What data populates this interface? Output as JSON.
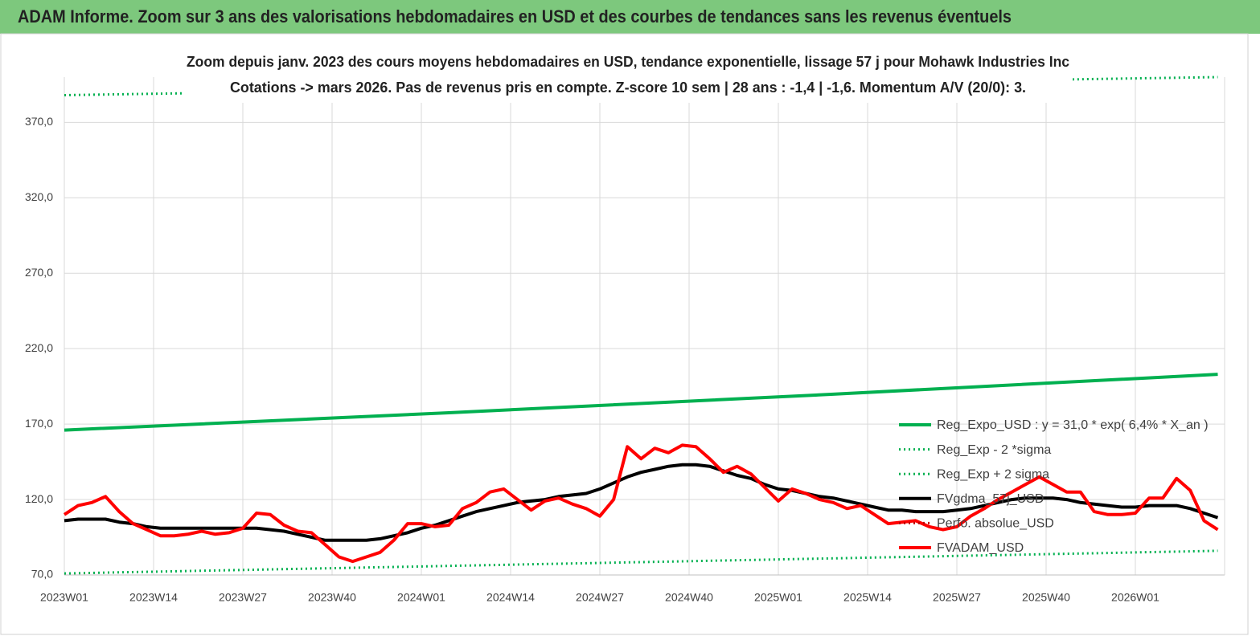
{
  "header": {
    "title": "ADAM Informe. Zoom sur 3 ans des valorisations hebdomadaires en USD et des courbes de tendances sans les revenus éventuels"
  },
  "chart_data": {
    "type": "line",
    "subtitle": [
      "Zoom depuis janv. 2023 des cours moyens hebdomadaires en USD, tendance exponentielle, lissage 57 j pour Mohawk Industries Inc",
      "Cotations -> mars 2026. Pas de revenus pris en compte. Z-score 10 sem  | 28 ans : -1,4 | -1,6. Momentum A/V (20/0): 3."
    ],
    "x": [
      0,
      2,
      4,
      6,
      8,
      10,
      12,
      14,
      16,
      18,
      20,
      22,
      24,
      26,
      28,
      30,
      32,
      34,
      36,
      38,
      40,
      42,
      44,
      46,
      48,
      50,
      52,
      54,
      56,
      58,
      60,
      62,
      64,
      66,
      68,
      70,
      72,
      74,
      76,
      78,
      80,
      82,
      84,
      86,
      88,
      90,
      92,
      94,
      96,
      98,
      100,
      102,
      104,
      106,
      108,
      110,
      112,
      114,
      116,
      118,
      120,
      122,
      124,
      126,
      128,
      130,
      132,
      134,
      136,
      138,
      140,
      142,
      144,
      146,
      148,
      150,
      152,
      154,
      156,
      158,
      160,
      162,
      164,
      166,
      168
    ],
    "xlim": [
      0,
      169
    ],
    "xticks": [
      {
        "value": 0,
        "label": "2023W01"
      },
      {
        "value": 13,
        "label": "2023W14"
      },
      {
        "value": 26,
        "label": "2023W27"
      },
      {
        "value": 39,
        "label": "2023W40"
      },
      {
        "value": 52,
        "label": "2024W01"
      },
      {
        "value": 65,
        "label": "2024W14"
      },
      {
        "value": 78,
        "label": "2024W27"
      },
      {
        "value": 91,
        "label": "2024W40"
      },
      {
        "value": 104,
        "label": "2025W01"
      },
      {
        "value": 117,
        "label": "2025W14"
      },
      {
        "value": 130,
        "label": "2025W27"
      },
      {
        "value": 143,
        "label": "2025W40"
      },
      {
        "value": 156,
        "label": "2026W01"
      }
    ],
    "ylim": [
      70,
      400
    ],
    "yticks": [
      {
        "value": 70,
        "label": "70,0"
      },
      {
        "value": 120,
        "label": "120,0"
      },
      {
        "value": 170,
        "label": "170,0"
      },
      {
        "value": 220,
        "label": "220,0"
      },
      {
        "value": 270,
        "label": "270,0"
      },
      {
        "value": 320,
        "label": "320,0"
      },
      {
        "value": 370,
        "label": "370,0"
      }
    ],
    "grid": true,
    "legend": "right",
    "series": [
      {
        "name": "Reg_Expo_USD : y = 31,0 * exp( 6,4% *  X_an )",
        "color": "#00b050",
        "style": "solid",
        "x": [
          0,
          56,
          112,
          168
        ],
        "values": [
          166,
          177.5,
          189.8,
          203
        ]
      },
      {
        "name": "Reg_Exp - 2 *sigma",
        "color": "#00b050",
        "style": "dotted",
        "x": [
          0,
          56,
          112,
          168
        ],
        "values": [
          71,
          76,
          81,
          86
        ]
      },
      {
        "name": "Reg_Exp + 2 sigma",
        "color": "#00b050",
        "style": "dotted",
        "x": [
          0,
          56,
          112,
          168
        ],
        "values": [
          388,
          392,
          396,
          400
        ]
      },
      {
        "name": "FVgdma_57j_USD",
        "color": "#000000",
        "style": "solid",
        "values": [
          106,
          107,
          107,
          107,
          105,
          104,
          102,
          101,
          101,
          101,
          101,
          101,
          101,
          101,
          101,
          100,
          99,
          97,
          95,
          93,
          93,
          93,
          93,
          94,
          96,
          98,
          101,
          103,
          106,
          109,
          112,
          114,
          116,
          118,
          119,
          120,
          122,
          123,
          124,
          127,
          131,
          135,
          138,
          140,
          142,
          143,
          143,
          142,
          139,
          136,
          134,
          130,
          127,
          126,
          124,
          122,
          121,
          119,
          117,
          115,
          113,
          113,
          112,
          112,
          112,
          113,
          114,
          116,
          118,
          120,
          121,
          121,
          121,
          120,
          118,
          117,
          116,
          115,
          115,
          116,
          116,
          116,
          114,
          111,
          108
        ]
      },
      {
        "name": "Perfo. absolue_USD",
        "color": "#c00000",
        "style": "dotted",
        "x": [],
        "values": []
      },
      {
        "name": "FVADAM_USD",
        "color": "#ff0000",
        "style": "solid",
        "values": [
          110,
          116,
          118,
          122,
          112,
          104,
          100,
          96,
          96,
          97,
          99,
          97,
          98,
          101,
          111,
          110,
          103,
          99,
          98,
          90,
          82,
          79,
          82,
          85,
          93,
          104,
          104,
          102,
          103,
          114,
          118,
          125,
          127,
          120,
          113,
          119,
          121,
          117,
          114,
          109,
          120,
          155,
          147,
          154,
          151,
          156,
          155,
          147,
          138,
          142,
          137,
          128,
          119,
          127,
          124,
          120,
          118,
          114,
          116,
          110,
          104,
          105,
          106,
          102,
          100,
          102,
          109,
          114,
          120,
          125,
          130,
          135,
          130,
          125,
          125,
          112,
          110,
          110,
          111,
          121,
          121,
          134,
          126,
          106,
          100
        ]
      }
    ]
  }
}
